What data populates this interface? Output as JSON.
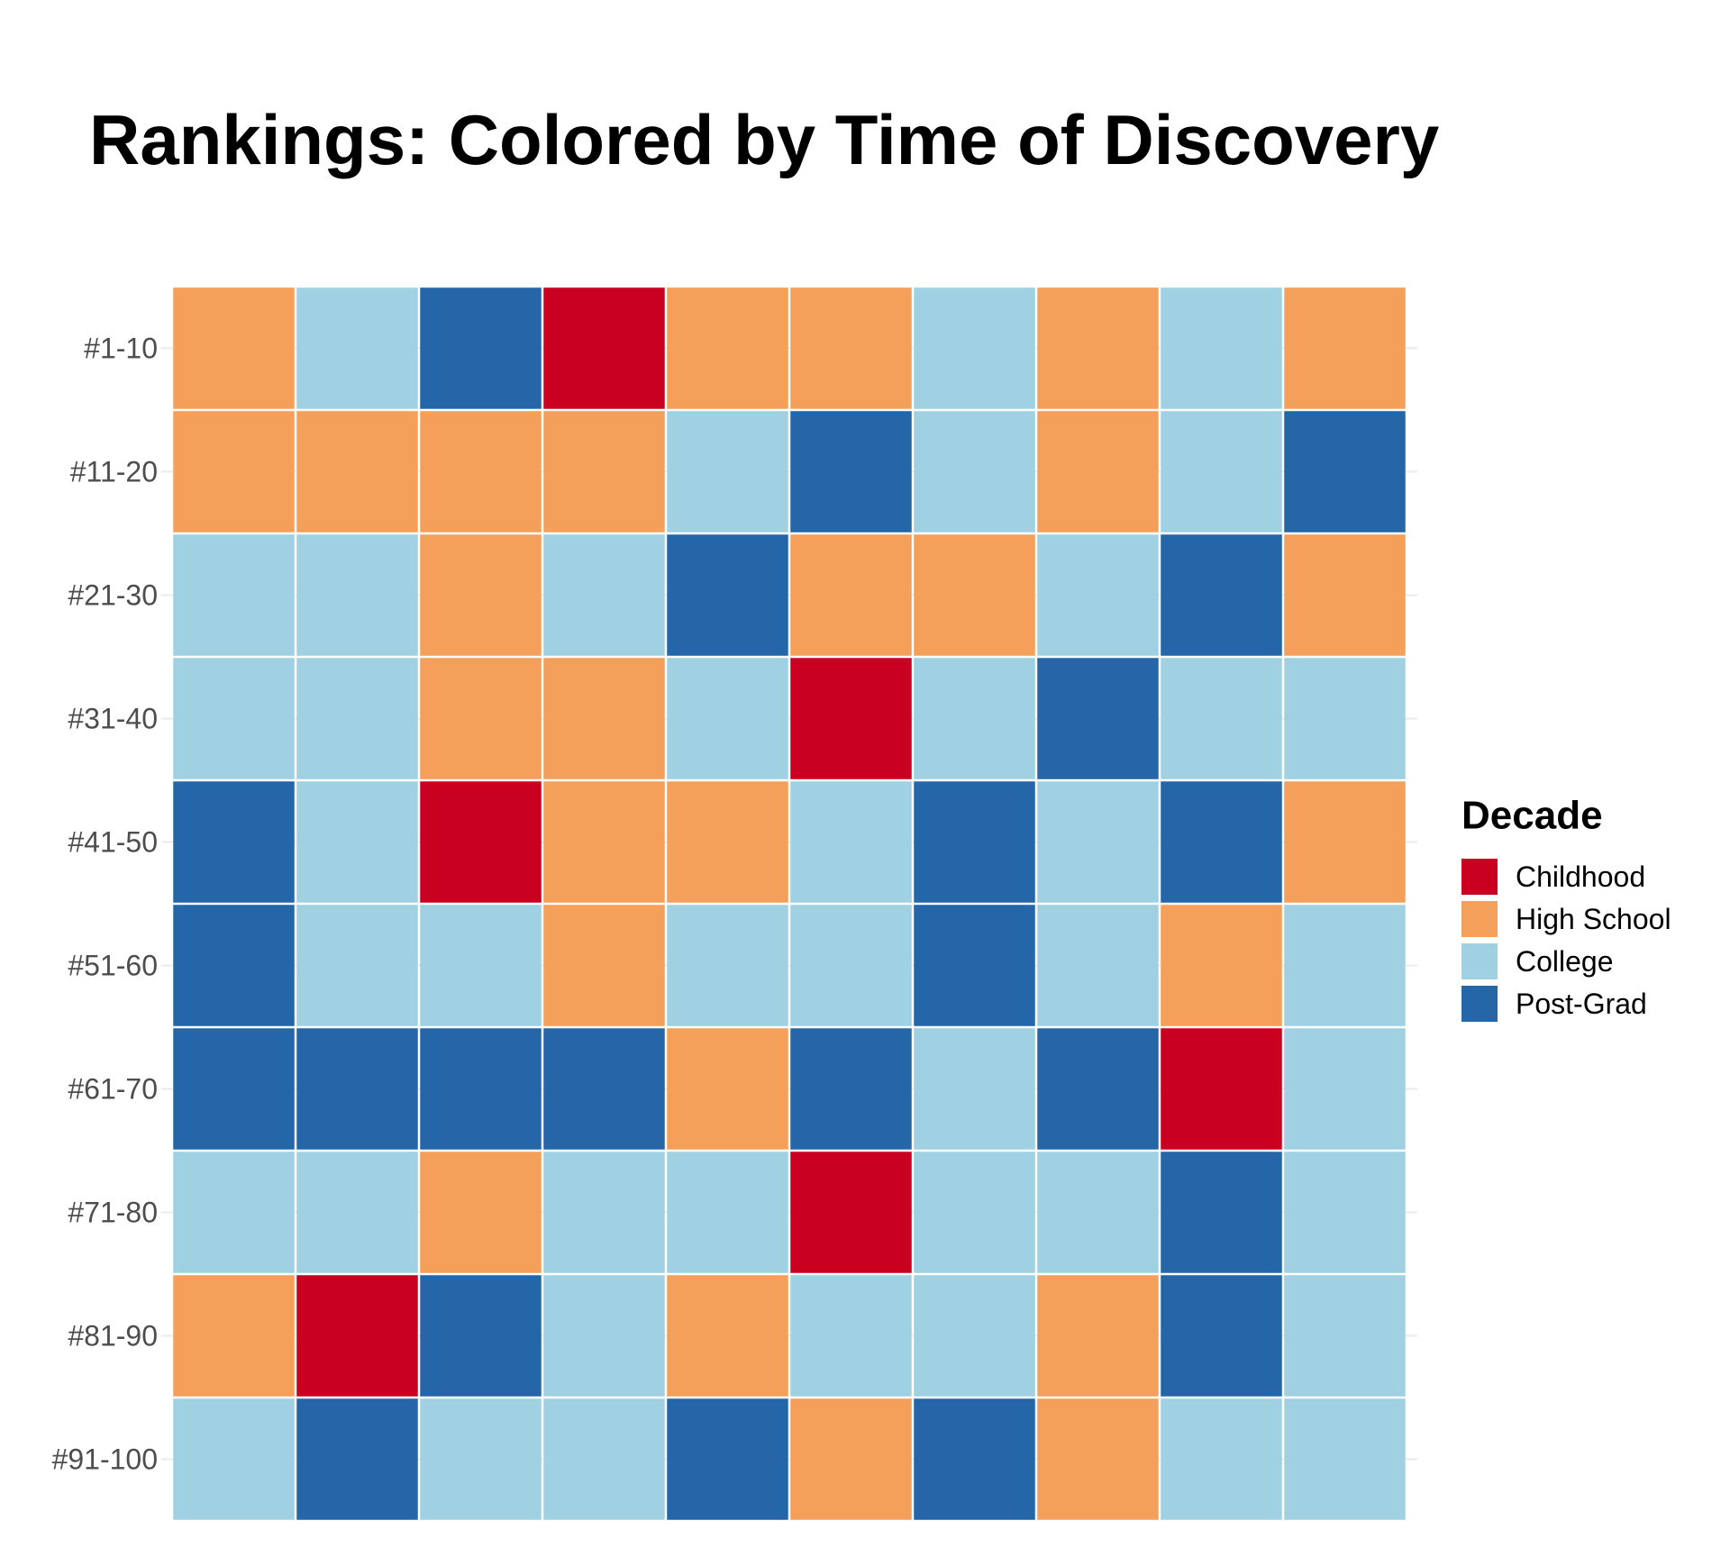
{
  "chart_data": {
    "type": "heatmap",
    "title": "Rankings: Colored by Time of Discovery",
    "xlabel": "",
    "ylabel": "",
    "rows": [
      "#1-10",
      "#11-20",
      "#21-30",
      "#31-40",
      "#41-50",
      "#51-60",
      "#61-70",
      "#71-80",
      "#81-90",
      "#91-100"
    ],
    "columns": 10,
    "values": [
      [
        "High School",
        "College",
        "Post-Grad",
        "Childhood",
        "High School",
        "High School",
        "College",
        "High School",
        "College",
        "High School"
      ],
      [
        "High School",
        "High School",
        "High School",
        "High School",
        "College",
        "Post-Grad",
        "College",
        "High School",
        "College",
        "Post-Grad"
      ],
      [
        "College",
        "College",
        "High School",
        "College",
        "Post-Grad",
        "High School",
        "High School",
        "College",
        "Post-Grad",
        "High School"
      ],
      [
        "College",
        "College",
        "High School",
        "High School",
        "College",
        "Childhood",
        "College",
        "Post-Grad",
        "College",
        "College"
      ],
      [
        "Post-Grad",
        "College",
        "Childhood",
        "High School",
        "High School",
        "College",
        "Post-Grad",
        "College",
        "Post-Grad",
        "High School"
      ],
      [
        "Post-Grad",
        "College",
        "College",
        "High School",
        "College",
        "College",
        "Post-Grad",
        "College",
        "High School",
        "College"
      ],
      [
        "Post-Grad",
        "Post-Grad",
        "Post-Grad",
        "Post-Grad",
        "High School",
        "Post-Grad",
        "College",
        "Post-Grad",
        "Childhood",
        "College"
      ],
      [
        "College",
        "College",
        "High School",
        "College",
        "College",
        "Childhood",
        "College",
        "College",
        "Post-Grad",
        "College"
      ],
      [
        "High School",
        "Childhood",
        "Post-Grad",
        "College",
        "High School",
        "College",
        "College",
        "High School",
        "Post-Grad",
        "College"
      ],
      [
        "College",
        "Post-Grad",
        "College",
        "College",
        "Post-Grad",
        "High School",
        "Post-Grad",
        "High School",
        "College",
        "College"
      ]
    ],
    "legend": {
      "title": "Decade",
      "position": "right",
      "entries": [
        {
          "label": "Childhood",
          "color": "#ca0020"
        },
        {
          "label": "High School",
          "color": "#f4a05a"
        },
        {
          "label": "College",
          "color": "#9fd1e3"
        },
        {
          "label": "Post-Grad",
          "color": "#2466a8"
        }
      ]
    },
    "grid": true
  }
}
